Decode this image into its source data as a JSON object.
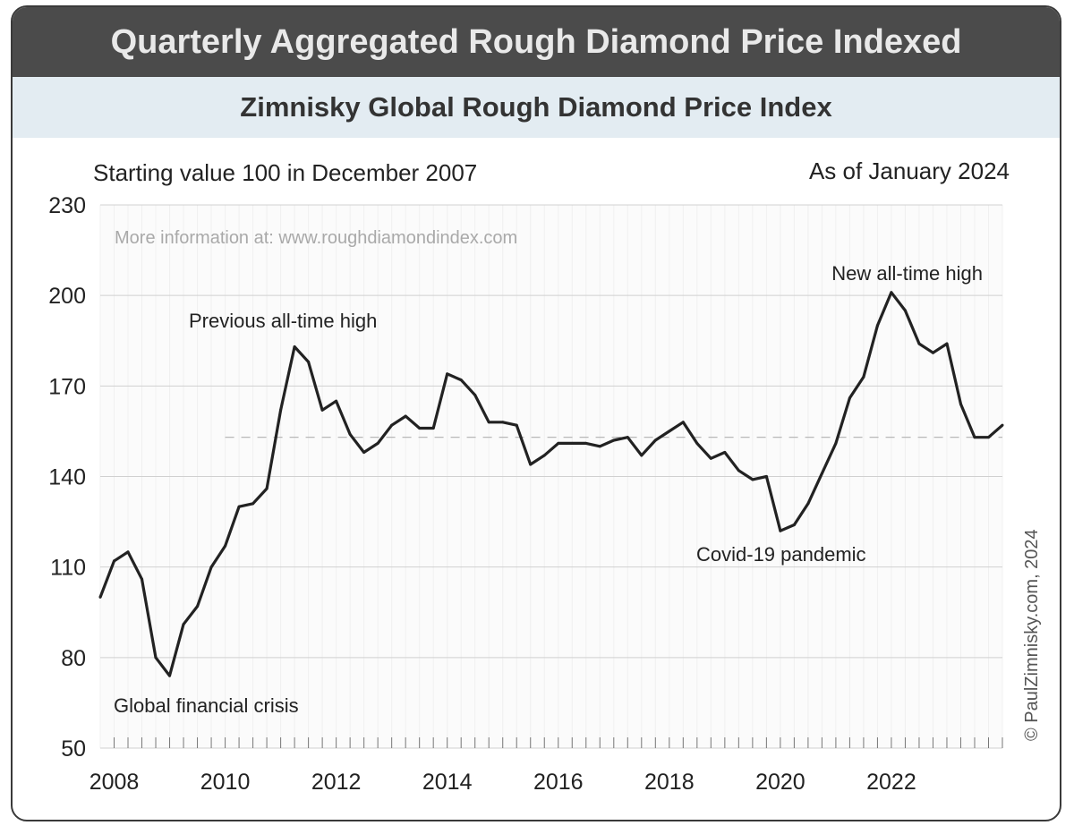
{
  "header": {
    "title": "Quarterly Aggregated Rough Diamond Price Indexed",
    "subtitle": "Zimnisky Global Rough Diamond Price Index"
  },
  "notes": {
    "left": "Starting value 100 in December 2007",
    "right": "As of January 2024",
    "info": "More information at: www.roughdiamondindex.com",
    "copyright": "© PaulZimnisky.com, 2024"
  },
  "colors": {
    "banner": "#4b4b4b",
    "subbanner": "#e3ecf2",
    "line": "#222222"
  },
  "chart_data": {
    "type": "line",
    "title": "Zimnisky Global Rough Diamond Price Index",
    "xlabel": "",
    "ylabel": "",
    "ylim": [
      50,
      230
    ],
    "yticks": [
      50,
      80,
      110,
      140,
      170,
      200,
      230
    ],
    "xticks": [
      "2008",
      "2010",
      "2012",
      "2014",
      "2016",
      "2018",
      "2020",
      "2022"
    ],
    "grid": true,
    "reference_line": 153,
    "series": [
      {
        "values": [
          100,
          112,
          115,
          106,
          80,
          74,
          91,
          97,
          110,
          117,
          130,
          131,
          136,
          162,
          183,
          178,
          162,
          165,
          154,
          148,
          151,
          157,
          160,
          156,
          156,
          174,
          172,
          167,
          158,
          158,
          157,
          144,
          147,
          151,
          151,
          151,
          150,
          152,
          153,
          147,
          152,
          155,
          158,
          151,
          146,
          148,
          142,
          139,
          140,
          122,
          124,
          131,
          141,
          151,
          166,
          173,
          190,
          201,
          195,
          184,
          181,
          184,
          164,
          153,
          153,
          157
        ]
      }
    ],
    "annotations": [
      {
        "text": "Global financial crisis"
      },
      {
        "text": "Previous all-time high"
      },
      {
        "text": "Covid-19 pandemic"
      },
      {
        "text": "New all-time high"
      }
    ]
  }
}
